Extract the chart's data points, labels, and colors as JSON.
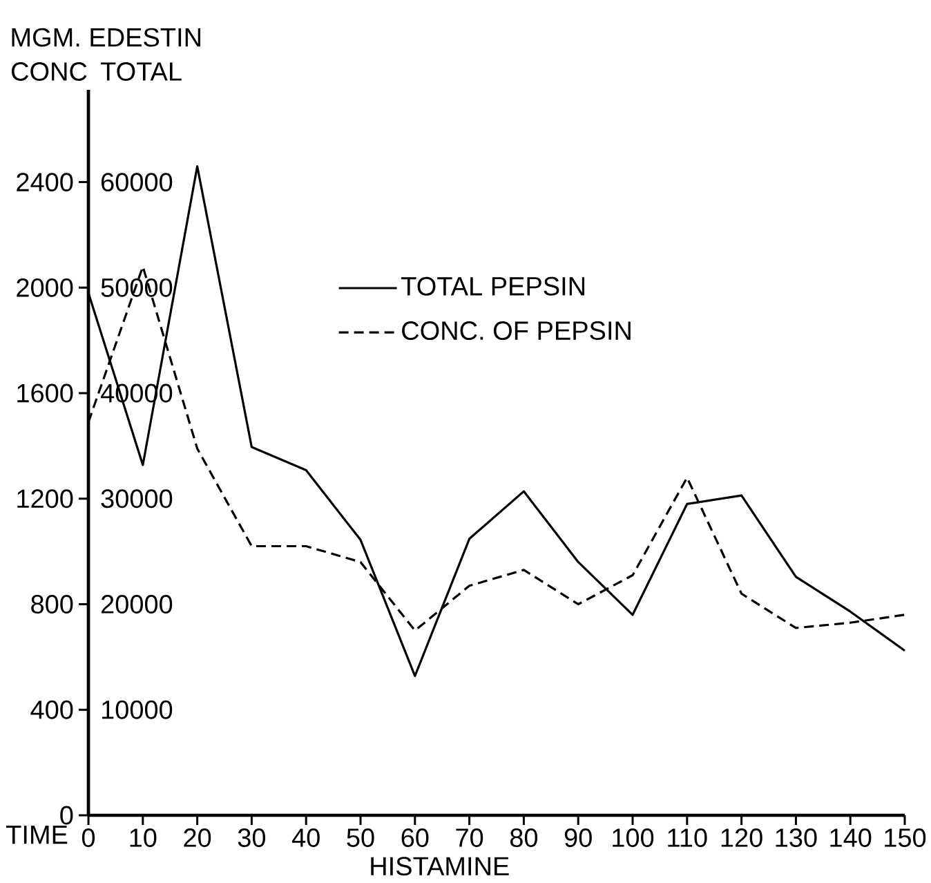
{
  "chart_data": {
    "type": "line",
    "title": "MGM. EDESTIN",
    "ylabel": "CONC",
    "y2label": "TOTAL",
    "xlabel": "TIME",
    "annotations": [
      "HISTAMINE"
    ],
    "x": [
      0,
      10,
      20,
      30,
      40,
      50,
      60,
      70,
      80,
      90,
      100,
      110,
      120,
      130,
      140,
      150
    ],
    "series": [
      {
        "name": "TOTAL PEPSIN",
        "color": "#000000",
        "axis": "y2",
        "line_style": "solid",
        "values": [
          49500,
          33200,
          61500,
          34900,
          32700,
          26100,
          13200,
          26200,
          30700,
          24000,
          19000,
          29500,
          30300,
          22600,
          19300,
          15600
        ]
      },
      {
        "name": "CONC. OF PEPSIN",
        "color": "#000000",
        "axis": "y",
        "line_style": "dashed",
        "values": [
          1490,
          2080,
          1390,
          1020,
          1020,
          960,
          700,
          870,
          930,
          800,
          910,
          1280,
          840,
          710,
          730,
          760
        ]
      }
    ],
    "xlim": [
      0,
      150
    ],
    "xticks": [
      0,
      10,
      20,
      30,
      40,
      50,
      60,
      70,
      80,
      90,
      100,
      110,
      120,
      130,
      140,
      150
    ],
    "ylim": [
      0,
      2750
    ],
    "yticks": [
      0,
      400,
      800,
      1200,
      1600,
      2000,
      2400
    ],
    "y2lim": [
      0,
      68750
    ],
    "y2ticks": [
      {
        "value": 0,
        "label": null
      },
      10000,
      20000,
      30000,
      40000,
      50000,
      60000
    ],
    "legend": "top",
    "grid": false,
    "marker": "none"
  }
}
